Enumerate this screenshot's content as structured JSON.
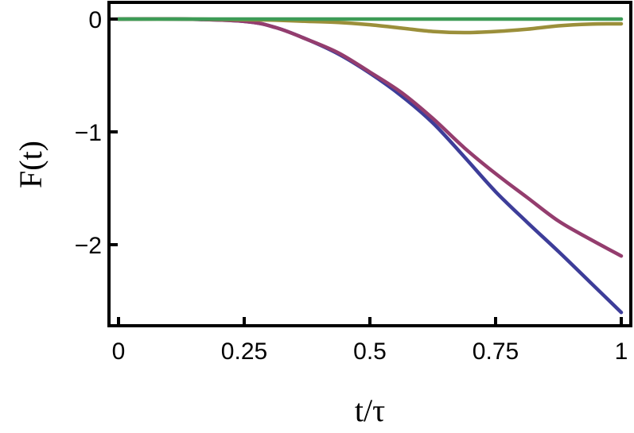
{
  "chart_data": {
    "type": "line",
    "title": "",
    "xlabel": "t/τ",
    "ylabel": "F(t)",
    "xlim": [
      0,
      1
    ],
    "ylim": [
      -2.65,
      0.1
    ],
    "grid": false,
    "x_ticks": [
      "0",
      "0.25",
      "0.5",
      "0.75",
      "1"
    ],
    "x_tick_values": [
      0,
      0.25,
      0.5,
      0.75,
      1
    ],
    "y_ticks": [
      "0",
      "−1",
      "−2"
    ],
    "y_tick_values": [
      0,
      -1,
      -2
    ],
    "x": [
      0,
      0.125,
      0.25,
      0.3125,
      0.375,
      0.4375,
      0.5,
      0.5625,
      0.625,
      0.6875,
      0.75,
      0.8125,
      0.875,
      0.9375,
      1
    ],
    "series": [
      {
        "color": "#3d3d99",
        "values": [
          0,
          0,
          -0.02,
          -0.075,
          -0.18,
          -0.31,
          -0.48,
          -0.68,
          -0.92,
          -1.22,
          -1.53,
          -1.8,
          -2.06,
          -2.33,
          -2.6
        ]
      },
      {
        "color": "#943d6e",
        "values": [
          0,
          0,
          -0.02,
          -0.075,
          -0.18,
          -0.3,
          -0.47,
          -0.65,
          -0.88,
          -1.14,
          -1.37,
          -1.58,
          -1.79,
          -1.95,
          -2.1
        ]
      },
      {
        "color": "#9b8f3a",
        "values": [
          0,
          0,
          -0.005,
          -0.01,
          -0.02,
          -0.03,
          -0.05,
          -0.08,
          -0.11,
          -0.12,
          -0.11,
          -0.09,
          -0.06,
          -0.045,
          -0.042
        ]
      },
      {
        "color": "#3d9b56",
        "values": [
          0,
          0,
          0,
          0,
          0,
          0,
          0,
          0,
          0,
          0,
          0,
          0,
          0,
          0,
          0
        ]
      }
    ]
  }
}
